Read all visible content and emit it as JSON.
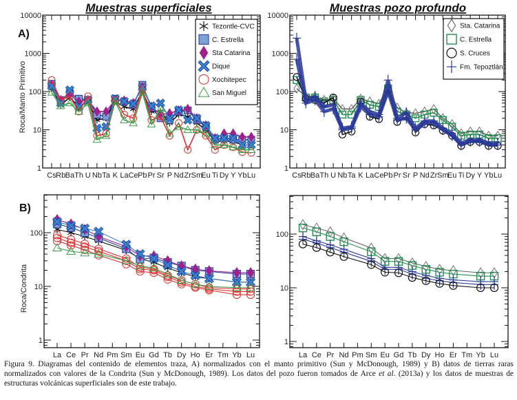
{
  "titles": {
    "left": "Muestras superficiales",
    "right": "Muestras pozo profundo"
  },
  "caption": {
    "part1": "Figura 9. Diagramas del contenido de elementos traza, A) normalizados con el manto primitivo (Sun y McDonough, 1989) y B) datos de tierras raras normalizados con valores de la Condrita (Sun y McDonough, 1989). Los datos del pozo fueron tomados de Arce ",
    "etal": "et al",
    "part2": ". (2013a) y los datos de muestras de estructuras volcánicas superficiales son de este trabajo."
  },
  "chart_data": [
    {
      "id": "A-left",
      "type": "line",
      "panel_label": "A)",
      "title": "Muestras superficiales",
      "ylabel": "Roca/Manto Primitivo",
      "yscale": "log",
      "ylim": [
        1,
        10000
      ],
      "yticks": [
        "1",
        "10",
        "100",
        "1000",
        "10000"
      ],
      "legend_position": "top-right",
      "categories": [
        "Cs",
        "Rb",
        "Ba",
        "Th",
        "U",
        "Nb",
        "Ta",
        "K",
        "La",
        "Ce",
        "Pb",
        "Pr",
        "Sr",
        "P",
        "Nd",
        "Zr",
        "Sm",
        "Eu",
        "Ti",
        "Dy",
        "Y",
        "Yb",
        "Lu"
      ],
      "xtick_labels": [
        "Cs",
        "Rb",
        "Ba",
        "Th",
        "U",
        "Nb",
        "Ta",
        "K",
        "La",
        "Ce",
        "Pb",
        "Pr",
        "Sr",
        "P",
        "Nd",
        "Zr",
        "Sm",
        "Eu",
        "Ti",
        "Dy",
        "Y",
        "Yb",
        "Lu"
      ],
      "series": [
        {
          "name": "Tezontle-CVC",
          "marker": "asterisk",
          "color": "#111111",
          "values": [
            120,
            45,
            70,
            40,
            55,
            18,
            20,
            55,
            40,
            35,
            100,
            30,
            30,
            15,
            25,
            22,
            15,
            10,
            5,
            5,
            5,
            4,
            4
          ]
        },
        {
          "name": "C. Estrella",
          "marker": "square",
          "color": "#2a3c9a",
          "fill": "#7da0d6",
          "values": [
            160,
            60,
            90,
            65,
            60,
            25,
            22,
            65,
            55,
            45,
            150,
            38,
            20,
            18,
            30,
            32,
            18,
            12,
            5.5,
            6,
            5.5,
            5.5,
            5.5
          ]
        },
        {
          "name": "Sta Catarina",
          "marker": "diamond",
          "color": "#a0208c",
          "fill": "#a0208c",
          "values": [
            150,
            60,
            85,
            55,
            60,
            30,
            30,
            60,
            58,
            50,
            130,
            40,
            25,
            27,
            32,
            35,
            20,
            13,
            6,
            8,
            8,
            6.5,
            6.5
          ]
        },
        {
          "name": "Dique",
          "marker": "x",
          "color": "#3a7fd0",
          "values": [
            140,
            50,
            110,
            40,
            60,
            11,
            12,
            65,
            55,
            48,
            130,
            42,
            50,
            20,
            33,
            18,
            20,
            13,
            6,
            6,
            6,
            4,
            4
          ]
        },
        {
          "name": "Xochitepec",
          "marker": "circle",
          "color": "#e03030",
          "values": [
            200,
            60,
            75,
            30,
            75,
            7,
            8,
            60,
            25,
            20,
            120,
            18,
            22,
            7,
            15,
            3,
            10,
            7,
            3,
            4,
            3.5,
            2.6,
            2.5
          ]
        },
        {
          "name": "San Miguel",
          "marker": "triangle",
          "color": "#3aa04a",
          "values": [
            95,
            42,
            50,
            30,
            50,
            5.5,
            7,
            55,
            18,
            15,
            95,
            14,
            35,
            8,
            12,
            10,
            10,
            8,
            4,
            4,
            3.5,
            3,
            3
          ]
        }
      ]
    },
    {
      "id": "A-right",
      "type": "line",
      "title": "Muestras pozo profundo",
      "yscale": "log",
      "ylim": [
        1,
        10000
      ],
      "yticks": [
        "1",
        "10",
        "100",
        "1000",
        "10000"
      ],
      "legend_position": "top-right",
      "categories": [
        "Cs",
        "Rb",
        "Ba",
        "Th",
        "U",
        "Nb",
        "Ta",
        "K",
        "La",
        "Ce",
        "Pb",
        "Pr",
        "Sr",
        "P",
        "Nd",
        "Zr",
        "Sm",
        "Eu",
        "Ti",
        "Dy",
        "Y",
        "Yb",
        "Lu"
      ],
      "xtick_labels": [
        "Cs",
        "Rb",
        "Ba",
        "Th",
        "U",
        "Nb",
        "Ta",
        "K",
        "La",
        "Ce",
        "Pb",
        "Pr",
        "Sr",
        "P",
        "Nd",
        "Zr",
        "Sm",
        "Eu",
        "Ti",
        "Dy",
        "Y",
        "Yb",
        "Lu"
      ],
      "series": [
        {
          "name": "Sta. Catarina",
          "marker": "diamond-open",
          "color": "#666666",
          "values": [
            120,
            75,
            75,
            60,
            65,
            35,
            35,
            65,
            55,
            48,
            130,
            38,
            28,
            27,
            30,
            35,
            20,
            14,
            8,
            9,
            9,
            7,
            7
          ]
        },
        {
          "name": "C. Estrella",
          "marker": "square-open",
          "color": "#1e9050",
          "values": [
            200,
            70,
            70,
            55,
            60,
            25,
            25,
            60,
            45,
            40,
            120,
            30,
            25,
            20,
            25,
            28,
            18,
            12,
            7,
            7.5,
            7.5,
            6,
            6
          ]
        },
        {
          "name": "S. Cruces",
          "marker": "circle-open",
          "color": "#111111",
          "values": [
            240,
            65,
            60,
            50,
            70,
            7.5,
            9,
            55,
            22,
            19,
            110,
            16,
            22,
            8.5,
            14,
            13,
            9.5,
            7,
            3.8,
            4.8,
            4.8,
            3.8,
            3.8
          ]
        },
        {
          "name": "Fm. Tepoztlán",
          "marker": "plus",
          "color": "#2a3a9a",
          "values": [
            2500,
            60,
            75,
            40,
            45,
            11,
            12,
            50,
            30,
            25,
            200,
            20,
            28,
            11,
            17,
            17,
            11,
            8,
            4.5,
            5.5,
            5.5,
            4.5,
            4.5
          ]
        },
        {
          "name": "Fm. Tepoztlán (b)",
          "marker": "plus",
          "color": "#2a3a9a",
          "values": [
            700,
            50,
            60,
            30,
            35,
            10,
            11,
            40,
            25,
            22,
            100,
            18,
            20,
            10,
            15,
            15,
            10,
            7,
            4,
            5,
            5,
            4,
            4
          ]
        }
      ]
    },
    {
      "id": "B-left",
      "type": "line",
      "panel_label": "B)",
      "ylabel": "Roca/Condrita",
      "yscale": "log",
      "ylim": [
        0.7,
        500
      ],
      "yticks": [
        "1",
        "10",
        "100"
      ],
      "categories": [
        "La",
        "Ce",
        "Pr",
        "Nd",
        "Pm",
        "Sm",
        "Eu",
        "Gd",
        "Tb",
        "Dy",
        "Ho",
        "Er",
        "Tm",
        "Yb",
        "Lu"
      ],
      "xtick_labels": [
        "La",
        "Ce",
        "Pr",
        "Nd",
        "Pm",
        "Sm",
        "Eu",
        "Gd",
        "Tb",
        "Dy",
        "Ho",
        "Er",
        "Tm",
        "Yb",
        "Lu"
      ],
      "series": [
        {
          "name": "Tezontle-CVC",
          "marker": "asterisk",
          "color": "#111111",
          "values": [
            115,
            100,
            85,
            70,
            null,
            47,
            33,
            28,
            22,
            18,
            15,
            14,
            null,
            12,
            12
          ]
        },
        {
          "name": "C. Estrella",
          "marker": "square",
          "color": "#2a3c9a",
          "fill": "#7da0d6",
          "values": [
            145,
            125,
            100,
            80,
            null,
            50,
            32,
            34,
            28,
            24,
            20,
            19,
            null,
            17,
            17
          ]
        },
        {
          "name": "Sta Catarina",
          "marker": "diamond",
          "color": "#a0208c",
          "fill": "#a0208c",
          "values": [
            175,
            145,
            115,
            85,
            null,
            55,
            37,
            37,
            30,
            24,
            21,
            19.5,
            null,
            18,
            18
          ]
        },
        {
          "name": "Dique",
          "marker": "x",
          "color": "#3a7fd0",
          "values": [
            160,
            135,
            120,
            105,
            null,
            60,
            40,
            33,
            25,
            19,
            16,
            14,
            null,
            12,
            12
          ]
        },
        {
          "name": "Xochitepec",
          "marker": "circle",
          "color": "#e03030",
          "values": [
            80,
            65,
            55,
            45,
            null,
            30,
            21,
            20,
            15,
            12,
            10,
            9,
            null,
            8,
            8
          ]
        },
        {
          "name": "Xochitepec (b)",
          "marker": "circle",
          "color": "#e03030",
          "values": [
            90,
            75,
            62,
            50,
            null,
            33,
            23,
            21,
            16,
            13,
            11,
            9.5,
            null,
            9,
            9
          ]
        },
        {
          "name": "Xochitepec (c)",
          "marker": "circle",
          "color": "#e03030",
          "values": [
            70,
            58,
            48,
            38,
            null,
            26,
            19,
            18,
            13.5,
            11,
            9.5,
            8.5,
            null,
            7,
            7
          ]
        },
        {
          "name": "San Miguel",
          "marker": "triangle",
          "color": "#3aa04a",
          "values": [
            52,
            45,
            42,
            40,
            null,
            30,
            24,
            22,
            17,
            13,
            11,
            10,
            null,
            9.5,
            9.5
          ]
        }
      ]
    },
    {
      "id": "B-right",
      "type": "line",
      "yscale": "log",
      "ylim": [
        0.7,
        500
      ],
      "yticks": [
        "1",
        "10",
        "100"
      ],
      "categories": [
        "La",
        "Ce",
        "Pr",
        "Nd",
        "Pm",
        "Sm",
        "Eu",
        "Gd",
        "Tb",
        "Dy",
        "Ho",
        "Er",
        "Tm",
        "Yb",
        "Lu"
      ],
      "xtick_labels": [
        "La",
        "Ce",
        "Pr",
        "Nd",
        "Pm",
        "Sm",
        "Eu",
        "Gd",
        "Tb",
        "Dy",
        "Ho",
        "Er",
        "Tm",
        "Yb",
        "Lu"
      ],
      "series": [
        {
          "name": "Sta. Catarina",
          "marker": "diamond-open",
          "color": "#666666",
          "values": [
            150,
            130,
            110,
            85,
            null,
            55,
            35,
            35,
            29,
            25,
            22,
            21,
            null,
            19,
            19
          ]
        },
        {
          "name": "C. Estrella",
          "marker": "square-open",
          "color": "#1e9050",
          "values": [
            130,
            110,
            90,
            72,
            null,
            47,
            31,
            31,
            26,
            22,
            19.5,
            18,
            null,
            16.5,
            16.5
          ]
        },
        {
          "name": "Fm. Tepoztlán",
          "marker": "plus",
          "color": "#2a3a9a",
          "values": [
            90,
            75,
            63,
            52,
            null,
            35,
            24,
            24,
            20,
            17,
            15,
            14,
            null,
            13,
            13
          ]
        },
        {
          "name": "Fm. Tepoztlán (b)",
          "marker": "plus",
          "color": "#2a3a9a",
          "values": [
            80,
            68,
            56,
            46,
            null,
            31,
            22,
            22,
            18,
            15,
            13.5,
            12.5,
            null,
            11.5,
            11.5
          ]
        },
        {
          "name": "S. Cruces",
          "marker": "circle-open",
          "color": "#111111",
          "values": [
            65,
            56,
            46,
            38,
            null,
            27,
            19.5,
            19,
            15.5,
            13.5,
            12,
            11,
            null,
            10,
            10
          ]
        }
      ]
    }
  ],
  "legends": {
    "A-left": [
      {
        "label": "Tezontle-CVC",
        "marker": "asterisk",
        "color": "#111111"
      },
      {
        "label": "C. Estrella",
        "marker": "square",
        "color": "#2a3c9a",
        "fill": "#7da0d6"
      },
      {
        "label": "Sta Catarina",
        "marker": "diamond",
        "color": "#a0208c",
        "fill": "#a0208c"
      },
      {
        "label": "Dique",
        "marker": "x",
        "color": "#3a7fd0"
      },
      {
        "label": "Xochitepec",
        "marker": "circle",
        "color": "#e03030"
      },
      {
        "label": "San Miguel",
        "marker": "triangle",
        "color": "#3aa04a"
      }
    ],
    "A-right": [
      {
        "label": "Sta. Catarina",
        "marker": "diamond-open",
        "color": "#444444"
      },
      {
        "label": "C. Estrella",
        "marker": "square-open",
        "color": "#1e9050"
      },
      {
        "label": "S. Cruces",
        "marker": "circle-open",
        "color": "#111111"
      },
      {
        "label": "Fm. Tepoztlán",
        "marker": "plus",
        "color": "#2a3a9a"
      }
    ]
  }
}
